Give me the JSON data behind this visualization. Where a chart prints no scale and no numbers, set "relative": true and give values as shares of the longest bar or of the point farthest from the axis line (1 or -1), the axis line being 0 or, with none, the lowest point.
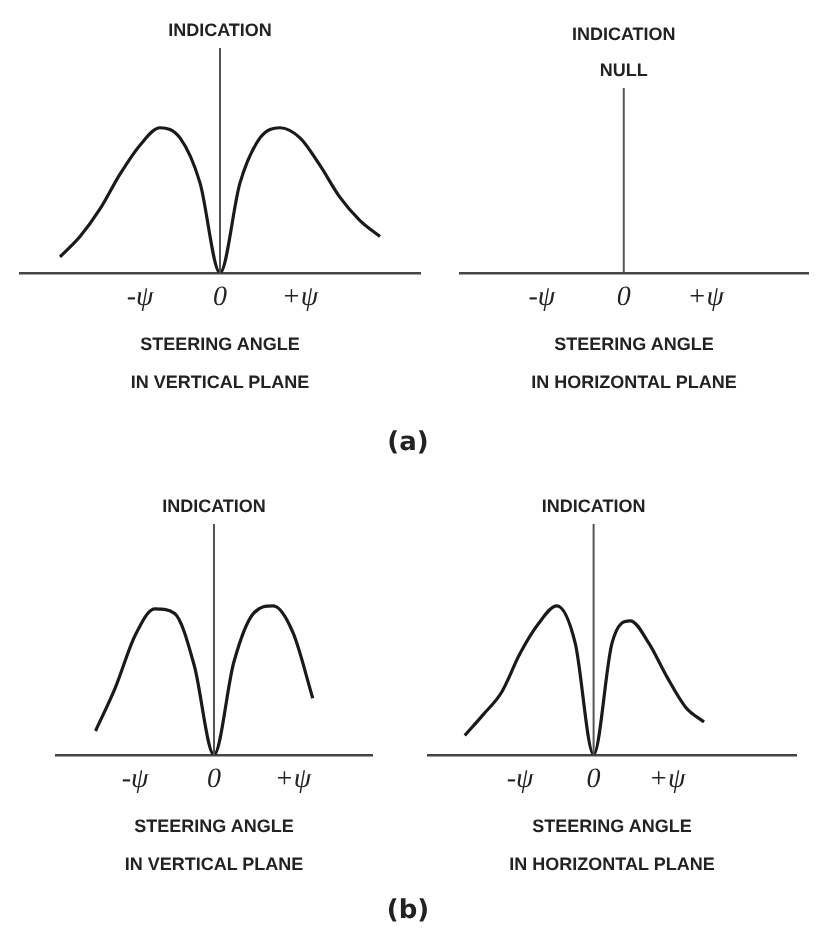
{
  "chart_data": [
    {
      "type": "line",
      "relative": true,
      "ylabel": "INDICATION",
      "xlabel": "STEERING ANGLE\nIN VERTICAL PLANE",
      "categories": [
        null,
        null,
        null,
        null,
        null,
        null,
        "-ψ",
        null,
        null,
        null,
        "0",
        null,
        null,
        null,
        "+ψ",
        null,
        null,
        null,
        null,
        null,
        null
      ],
      "ref_lines": [
        {
          "axis": "x",
          "value": "0"
        }
      ],
      "series": [
        {
          "color": "#1a1a1a",
          "values": [
            null,
            null,
            0.11,
            0.25,
            0.44,
            0.68,
            0.88,
            1,
            0.93,
            0.62,
            0,
            0.62,
            0.93,
            1,
            0.93,
            0.74,
            0.52,
            0.36,
            0.25,
            null,
            null
          ]
        }
      ],
      "annotations": [
        "(a)"
      ]
    },
    {
      "type": "other",
      "ylabel": "INDICATION",
      "xlabel": "STEERING ANGLE\nIN HORIZONTAL PLANE",
      "categories": [
        null,
        null,
        null,
        null,
        "-ψ",
        null,
        null,
        null,
        "0",
        null,
        null,
        null,
        "+ψ",
        null,
        null,
        null,
        null,
        null
      ],
      "ref_lines": [
        {
          "axis": "x",
          "value": "0",
          "label": "NULL"
        }
      ]
    },
    {
      "type": "line",
      "relative": true,
      "ylabel": "INDICATION",
      "xlabel": "STEERING ANGLE\nIN VERTICAL PLANE",
      "categories": [
        null,
        null,
        null,
        null,
        "-ψ",
        null,
        null,
        null,
        "0",
        null,
        null,
        null,
        "+ψ",
        null,
        null,
        null,
        null
      ],
      "ref_lines": [
        {
          "axis": "x",
          "value": "0"
        }
      ],
      "series": [
        {
          "color": "#1a1a1a",
          "values": [
            null,
            null,
            0.16,
            0.45,
            0.8,
            0.98,
            0.95,
            0.6,
            0,
            0.62,
            0.95,
            1,
            0.82,
            0.38,
            null,
            null,
            null
          ]
        }
      ],
      "annotations": [
        "(b)"
      ]
    },
    {
      "type": "line",
      "relative": true,
      "ylabel": "INDICATION",
      "xlabel": "STEERING ANGLE\nIN HORIZONTAL PLANE",
      "categories": [
        null,
        null,
        null,
        null,
        null,
        "-ψ",
        null,
        null,
        null,
        "0",
        null,
        null,
        null,
        "+ψ",
        null,
        null,
        null,
        null,
        null,
        null,
        null
      ],
      "ref_lines": [
        {
          "axis": "x",
          "value": "0"
        }
      ],
      "series": [
        {
          "color": "#1a1a1a",
          "values": [
            null,
            null,
            0.13,
            0.27,
            0.42,
            0.68,
            0.88,
            1,
            0.75,
            0,
            0.75,
            0.9,
            0.75,
            0.52,
            0.32,
            0.22,
            null,
            null,
            null,
            null,
            null
          ]
        }
      ]
    }
  ]
}
